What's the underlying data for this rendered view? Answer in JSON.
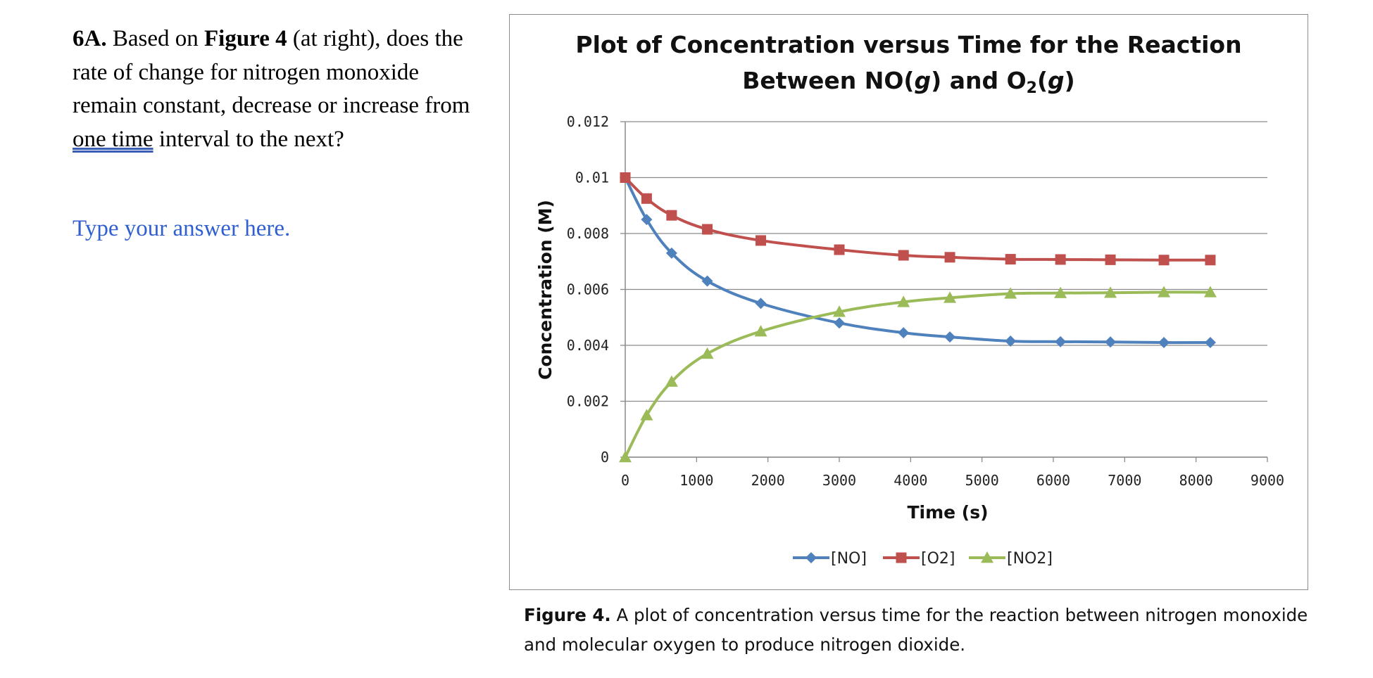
{
  "question": {
    "label": "6A.",
    "text_1": "Based on",
    "figure_ref": "Figure 4",
    "text_2": "(at right), does the rate of change for nitrogen monoxide remain constant, decrease or increase from",
    "underlined": "one time",
    "text_3": "interval to the next?"
  },
  "answer_placeholder": "Type your answer here.",
  "chart_data": {
    "type": "line",
    "title_line1": "Plot of Concentration versus Time for the Reaction",
    "title_line2_pre": "Between NO(",
    "title_italic_g": "g",
    "title_line2_mid": ") and O",
    "title_sub_2": "2",
    "title_line2_post": ")",
    "xlabel": "Time (s)",
    "ylabel": "Concentration (M)",
    "xlim": [
      0,
      9000
    ],
    "ylim": [
      0,
      0.012
    ],
    "x_ticks": [
      "0",
      "1000",
      "2000",
      "3000",
      "4000",
      "5000",
      "6000",
      "7000",
      "8000",
      "9000"
    ],
    "y_ticks": [
      "0",
      "0.002",
      "0.004",
      "0.006",
      "0.008",
      "0.01",
      "0.012"
    ],
    "x": [
      0,
      300,
      650,
      1150,
      1900,
      3000,
      3900,
      4550,
      5400,
      6100,
      6800,
      7550,
      8200
    ],
    "series": [
      {
        "name": "[NO]",
        "color": "#4f81bd",
        "marker": "diamond",
        "values": [
          0.01,
          0.0085,
          0.0073,
          0.0063,
          0.0055,
          0.0048,
          0.00445,
          0.0043,
          0.00415,
          0.00413,
          0.00412,
          0.0041,
          0.0041
        ]
      },
      {
        "name": "[O2]",
        "color": "#c0504d",
        "marker": "square",
        "values": [
          0.01,
          0.00925,
          0.00865,
          0.00815,
          0.00775,
          0.00742,
          0.00722,
          0.00715,
          0.00708,
          0.00707,
          0.00706,
          0.00705,
          0.00705
        ]
      },
      {
        "name": "[NO2]",
        "color": "#9bbb59",
        "marker": "triangle",
        "values": [
          0.0,
          0.0015,
          0.0027,
          0.0037,
          0.0045,
          0.0052,
          0.00555,
          0.0057,
          0.00585,
          0.00587,
          0.00588,
          0.0059,
          0.0059
        ]
      }
    ],
    "legend_position": "bottom"
  },
  "caption": {
    "bold": "Figure 4.",
    "text": "A plot of concentration versus time for the reaction between nitrogen monoxide and molecular oxygen to produce nitrogen dioxide."
  }
}
